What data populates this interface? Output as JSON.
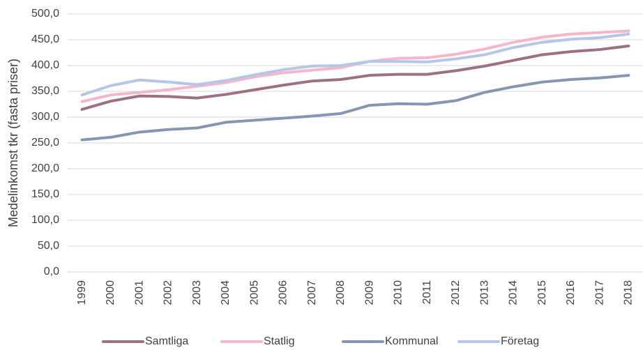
{
  "chart_data": {
    "type": "line",
    "y_label": "Medelinkomst tkr (fasta priser)",
    "categories": [
      "1999",
      "2000",
      "2001",
      "2002",
      "2003",
      "2004",
      "2005",
      "2006",
      "2007",
      "2008",
      "2009",
      "2010",
      "2011",
      "2012",
      "2013",
      "2014",
      "2015",
      "2016",
      "2017",
      "2018"
    ],
    "series": [
      {
        "name": "Samtliga",
        "color": "#9e6f86",
        "values": [
          315,
          331,
          341,
          340,
          337,
          344,
          353,
          362,
          370,
          373,
          381,
          383,
          383,
          390,
          399,
          410,
          421,
          427,
          431,
          438
        ]
      },
      {
        "name": "Statlig",
        "color": "#f6b6c9",
        "values": [
          330,
          343,
          348,
          353,
          360,
          367,
          378,
          386,
          391,
          396,
          408,
          414,
          415,
          422,
          432,
          445,
          455,
          461,
          464,
          467
        ]
      },
      {
        "name": "Kommunal",
        "color": "#8596b0",
        "values": [
          256,
          261,
          271,
          276,
          279,
          290,
          294,
          298,
          302,
          307,
          323,
          326,
          325,
          332,
          348,
          359,
          368,
          373,
          376,
          381
        ]
      },
      {
        "name": "Företag",
        "color": "#b4c7e7",
        "values": [
          343,
          361,
          372,
          368,
          363,
          371,
          382,
          392,
          399,
          400,
          408,
          408,
          407,
          413,
          421,
          435,
          445,
          451,
          454,
          461
        ]
      }
    ],
    "ylim": [
      0,
      500
    ],
    "yticks": [
      {
        "value": 0,
        "label": "0,0"
      },
      {
        "value": 50,
        "label": "50,0"
      },
      {
        "value": 100,
        "label": "100,0"
      },
      {
        "value": 150,
        "label": "150,0"
      },
      {
        "value": 200,
        "label": "200,0"
      },
      {
        "value": 250,
        "label": "250,0"
      },
      {
        "value": 300,
        "label": "300,0"
      },
      {
        "value": 350,
        "label": "350,0"
      },
      {
        "value": 400,
        "label": "400,0"
      },
      {
        "value": 450,
        "label": "450,0"
      },
      {
        "value": 500,
        "label": "500,0"
      }
    ],
    "grid": true,
    "legend": "bottom"
  }
}
